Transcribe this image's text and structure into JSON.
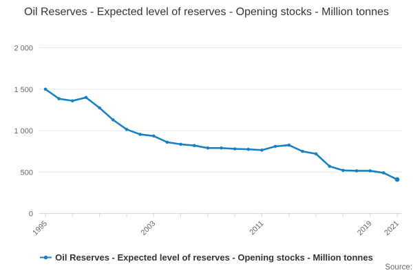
{
  "title": "Oil Reserves - Expected level of reserves - Opening stocks - Million tonnes",
  "source_label": "Source:",
  "legend": {
    "label": "Oil Reserves - Expected level of reserves - Opening stocks - Million tonnes"
  },
  "colors": {
    "line": "#1780c3",
    "grid": "#e6e6e6",
    "axis": "#ccd6eb",
    "tick_label": "#666666",
    "title_text": "#333333",
    "legend_text": "#333333",
    "source_text": "#666666"
  },
  "chart_data": {
    "type": "line",
    "title": "Oil Reserves - Expected level of reserves - Opening stocks - Million tonnes",
    "xlabel": "",
    "ylabel": "",
    "x": [
      1995,
      1996,
      1997,
      1998,
      1999,
      2000,
      2001,
      2002,
      2003,
      2004,
      2005,
      2006,
      2007,
      2008,
      2009,
      2010,
      2011,
      2012,
      2013,
      2014,
      2015,
      2016,
      2017,
      2018,
      2019,
      2020,
      2021
    ],
    "series": [
      {
        "name": "Oil Reserves - Expected level of reserves - Opening stocks - Million tonnes",
        "values": [
          1500,
          1385,
          1360,
          1400,
          1275,
          1130,
          1015,
          955,
          935,
          860,
          835,
          820,
          790,
          790,
          780,
          775,
          765,
          810,
          825,
          750,
          720,
          570,
          520,
          515,
          515,
          490,
          410
        ]
      }
    ],
    "ylim": [
      0,
      2000
    ],
    "y_ticks": [
      0,
      500,
      1000,
      1500,
      2000
    ],
    "y_tick_labels": [
      "0",
      "500",
      "1 000",
      "1 500",
      "2 000"
    ],
    "x_tick_step": 2,
    "x_label_ticks": [
      1995,
      2003,
      2011,
      2019,
      2021
    ],
    "grid": true,
    "legend_position": "bottom"
  }
}
